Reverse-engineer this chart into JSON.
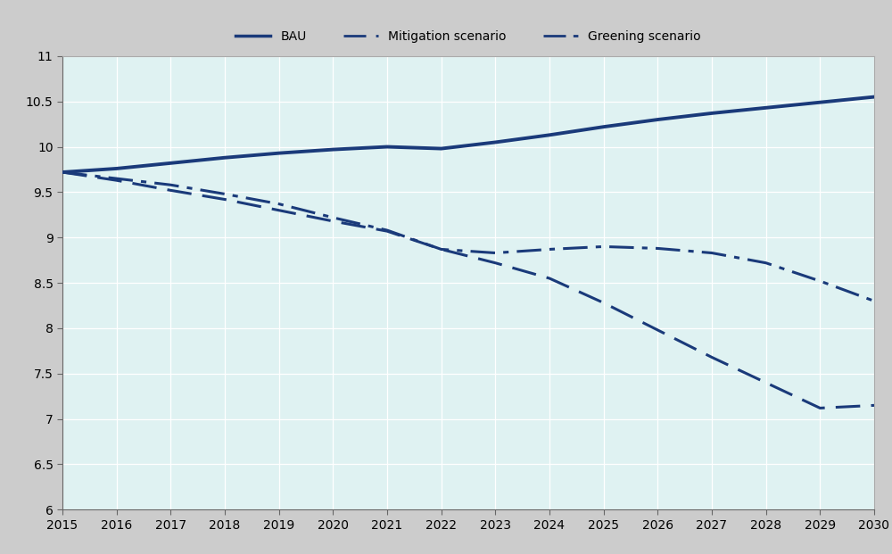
{
  "years": [
    2015,
    2016,
    2017,
    2018,
    2019,
    2020,
    2021,
    2022,
    2023,
    2024,
    2025,
    2026,
    2027,
    2028,
    2029,
    2030
  ],
  "bau": [
    9.72,
    9.76,
    9.82,
    9.88,
    9.93,
    9.97,
    10.0,
    9.98,
    10.05,
    10.13,
    10.22,
    10.3,
    10.37,
    10.43,
    10.49,
    10.55
  ],
  "mitigation": [
    9.72,
    9.63,
    9.52,
    9.42,
    9.3,
    9.18,
    9.07,
    8.87,
    8.72,
    8.55,
    8.28,
    7.98,
    7.68,
    7.4,
    7.12,
    7.15
  ],
  "greening": [
    9.72,
    9.65,
    9.58,
    9.48,
    9.37,
    9.22,
    9.08,
    8.87,
    8.83,
    8.87,
    8.9,
    8.88,
    8.83,
    8.72,
    8.52,
    8.3
  ],
  "line_color": "#1a3a7a",
  "background_color": "#dff2f2",
  "legend_bg": "#cccccc",
  "ylim": [
    6,
    11
  ],
  "yticks": [
    6,
    6.5,
    7,
    7.5,
    8,
    8.5,
    9,
    9.5,
    10,
    10.5,
    11
  ],
  "legend_labels": [
    "BAU",
    "Mitigation scenario",
    "Greening scenario"
  ],
  "legend_fontsize": 10,
  "tick_fontsize": 10
}
